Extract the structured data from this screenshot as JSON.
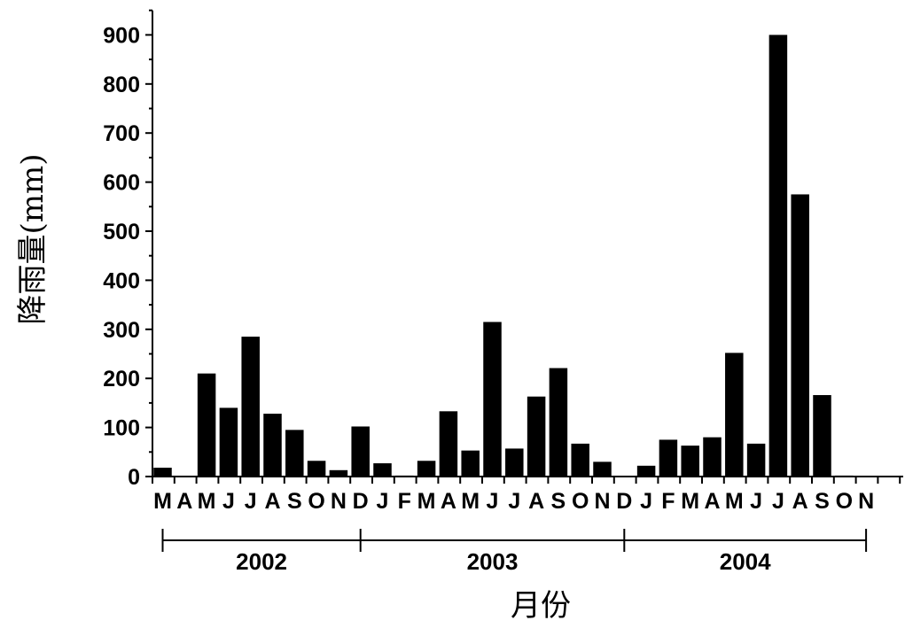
{
  "chart_data": {
    "type": "bar",
    "xlabel": "月份",
    "ylabel": "降雨量(mm)",
    "ylim": [
      0,
      950
    ],
    "yticks": [
      0,
      100,
      200,
      300,
      400,
      500,
      600,
      700,
      800,
      900
    ],
    "grid": false,
    "legend": "none",
    "bar_color": "#000000",
    "categories": [
      "M",
      "A",
      "M",
      "J",
      "J",
      "A",
      "S",
      "O",
      "N",
      "D",
      "J",
      "F",
      "M",
      "A",
      "M",
      "J",
      "J",
      "A",
      "S",
      "O",
      "N",
      "D",
      "J",
      "F",
      "M",
      "A",
      "M",
      "J",
      "J",
      "A",
      "S",
      "O",
      "N"
    ],
    "values": [
      18,
      0,
      210,
      140,
      285,
      128,
      95,
      32,
      13,
      102,
      27,
      2,
      32,
      133,
      53,
      315,
      57,
      163,
      221,
      67,
      30,
      1,
      22,
      75,
      63,
      80,
      252,
      67,
      900,
      575,
      166,
      2,
      1
    ],
    "year_groups": [
      {
        "label": "2002",
        "start_index": 0,
        "end_index": 9
      },
      {
        "label": "2003",
        "start_index": 9,
        "end_index": 21
      },
      {
        "label": "2004",
        "start_index": 21,
        "end_index": 32
      }
    ]
  }
}
